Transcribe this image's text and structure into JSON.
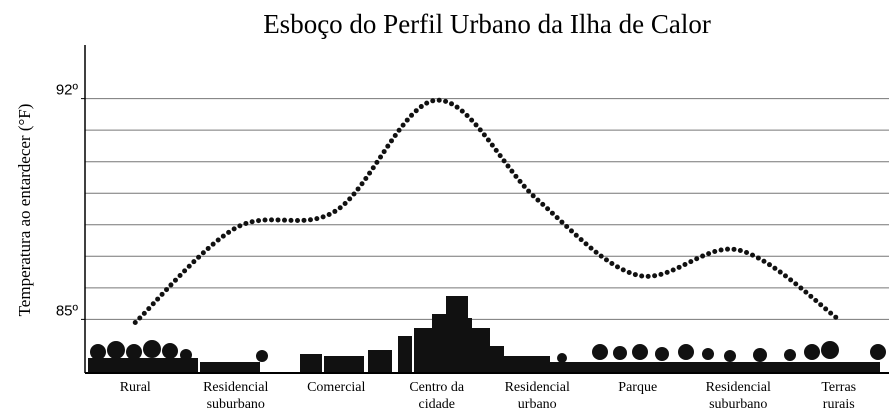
{
  "chart_data": {
    "type": "line",
    "title": "Esboço do Perfil Urbano da Ilha de Calor",
    "y_label": "Temperatura ao entardecer (°F)",
    "categories": [
      [
        "Rural"
      ],
      [
        "Residencial",
        "suburbano"
      ],
      [
        "Comercial"
      ],
      [
        "Centro da",
        "cidade"
      ],
      [
        "Residencial",
        "urbano"
      ],
      [
        "Parque"
      ],
      [
        "Residencial",
        "suburbano"
      ],
      [
        "Terras",
        "rurais"
      ]
    ],
    "values": [
      84.9,
      87.9,
      88.45,
      91.95,
      88.8,
      86.4,
      87.2,
      85.0
    ],
    "color": "#111111",
    "ylim": [
      83.3,
      93.7
    ],
    "yticks": [
      {
        "value": 85,
        "label": "85º"
      },
      {
        "value": 92,
        "label": "92º"
      }
    ],
    "ygrid": [
      85,
      86,
      87,
      88,
      89,
      90,
      91,
      92
    ]
  }
}
